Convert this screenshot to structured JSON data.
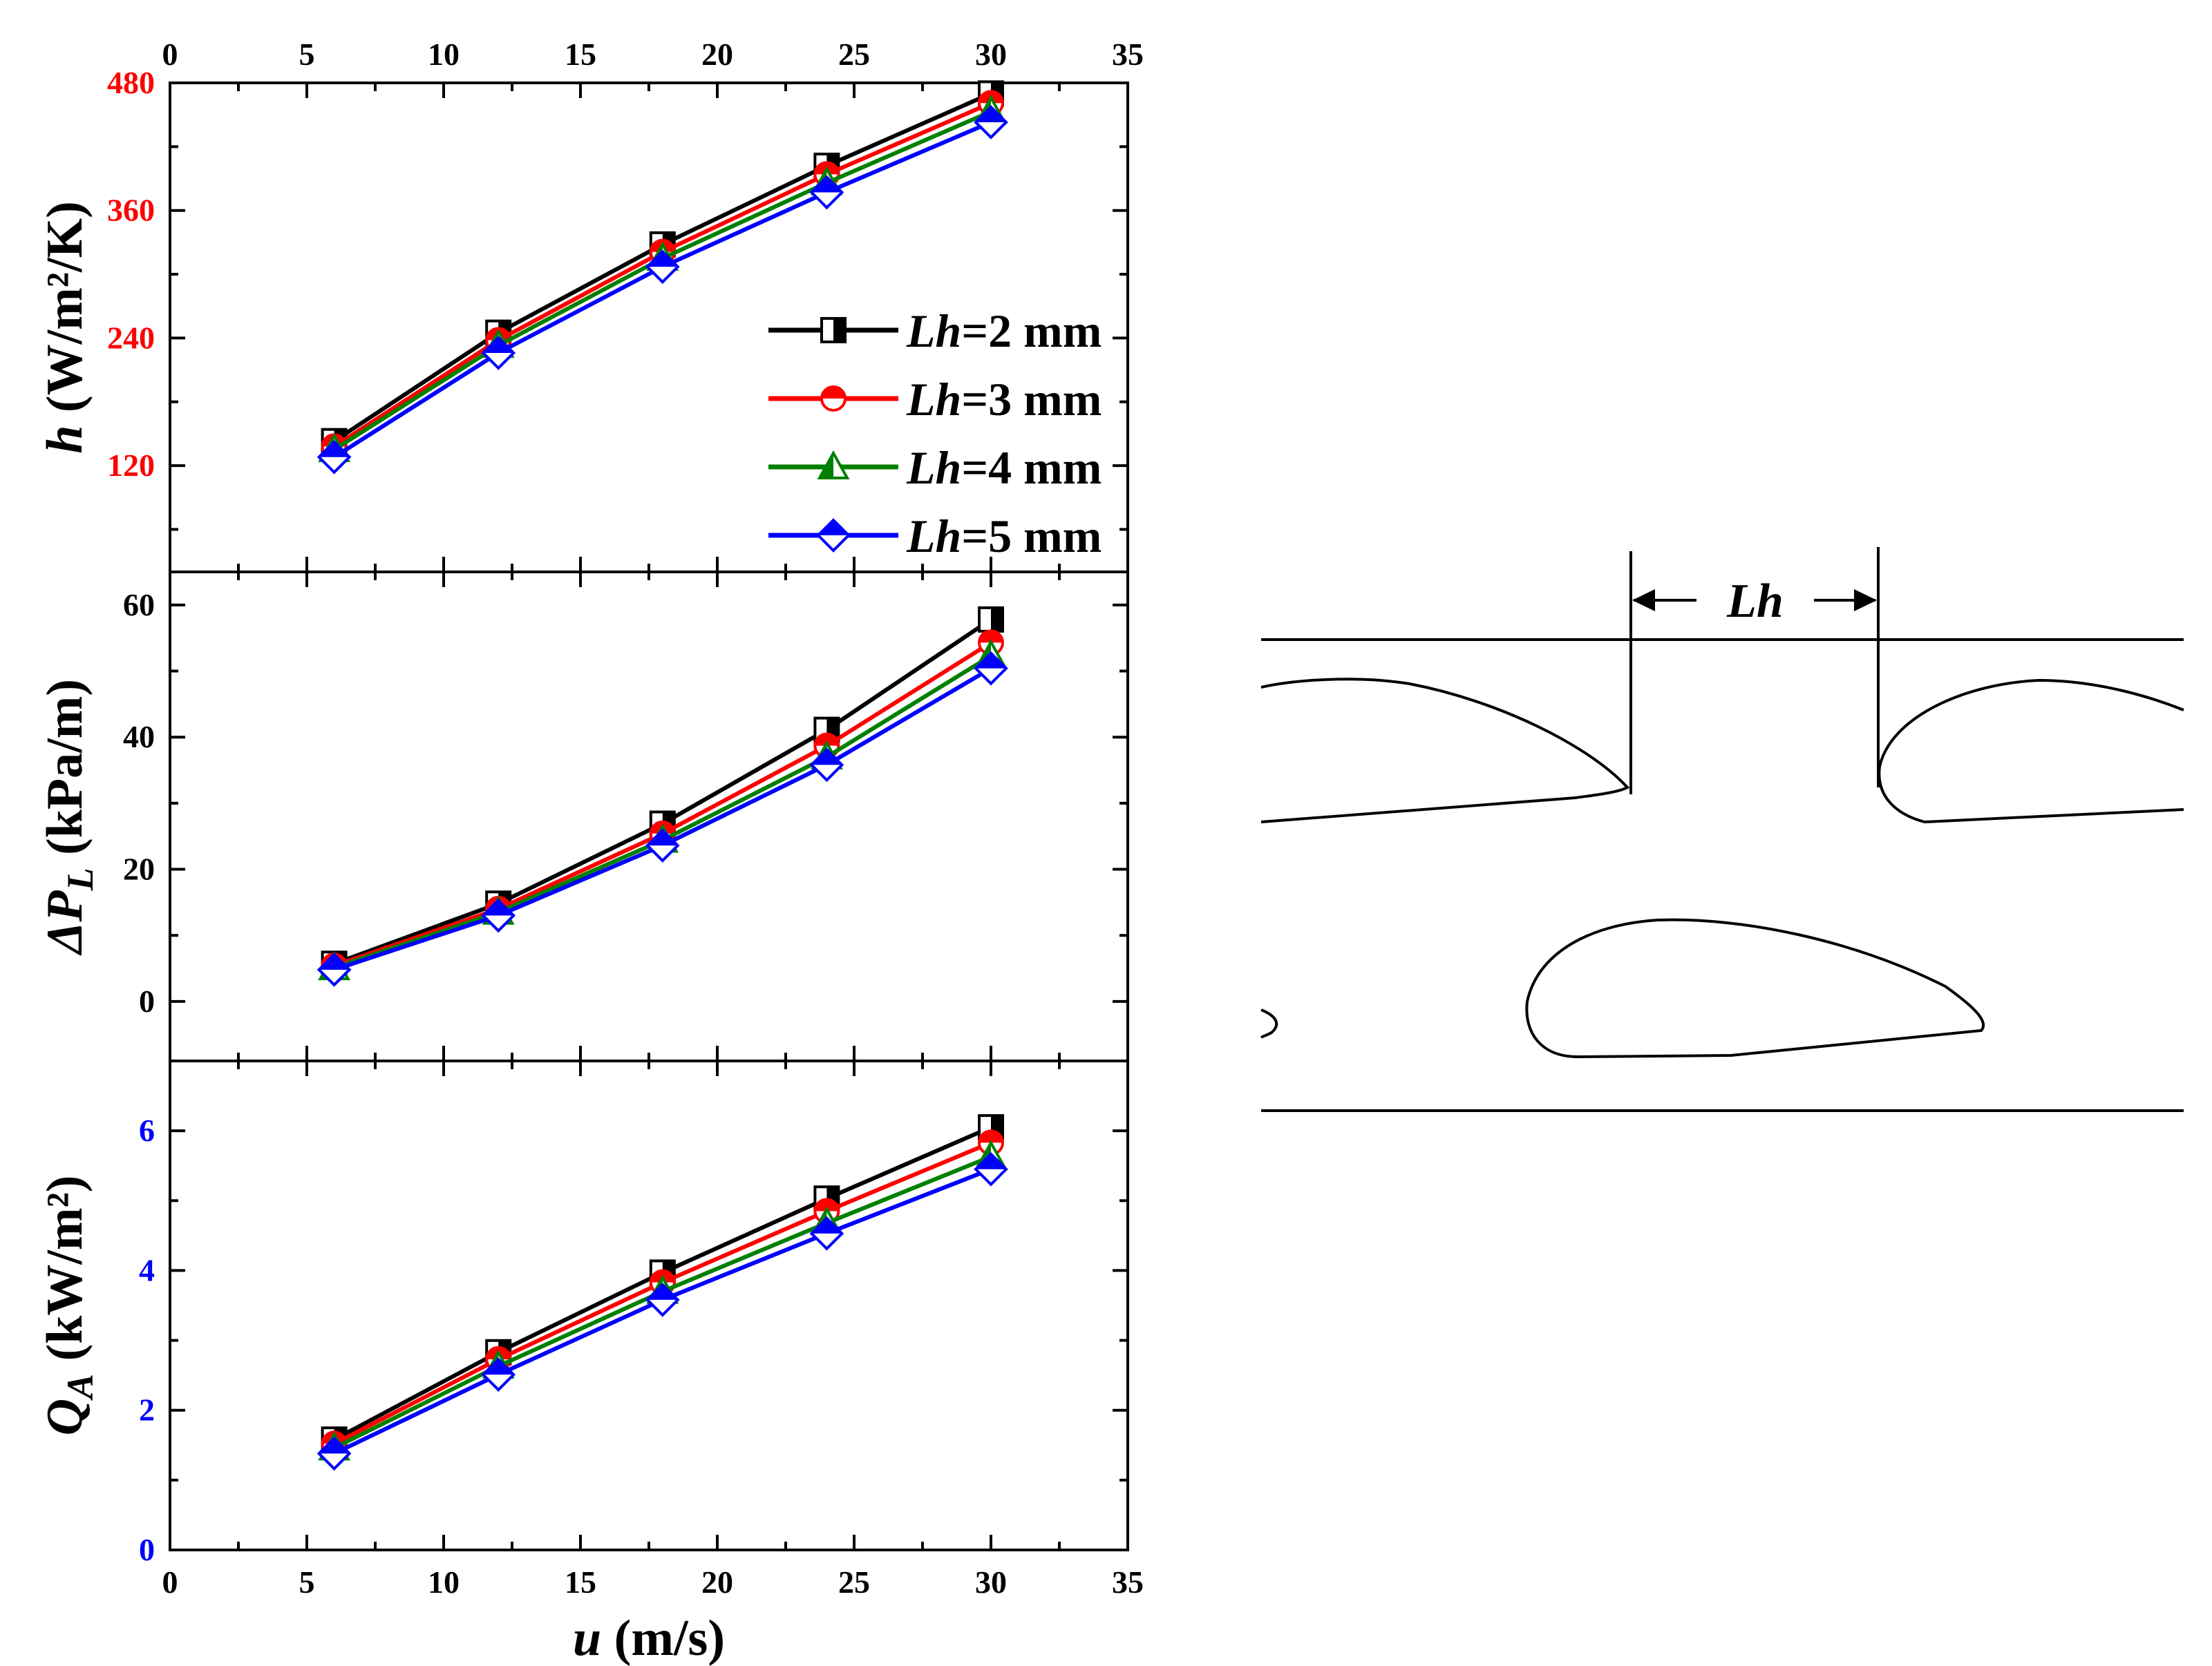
{
  "colors": {
    "Lh2": "#000000",
    "Lh3": "#ff0000",
    "Lh4": "#008000",
    "Lh5": "#0000ff",
    "axis": "#000000",
    "tick_red": "#ff0000",
    "tick_blue": "#0000ff"
  },
  "legend": {
    "placement": "right-middle of top panel",
    "entries": [
      {
        "key": "Lh2",
        "italic": "Lh",
        "rest": "=2 mm",
        "marker": "half-square"
      },
      {
        "key": "Lh3",
        "italic": "Lh",
        "rest": "=3 mm",
        "marker": "half-circle"
      },
      {
        "key": "Lh4",
        "italic": "Lh",
        "rest": "=4 mm",
        "marker": "half-triangle"
      },
      {
        "key": "Lh5",
        "italic": "Lh",
        "rest": "=5 mm",
        "marker": "half-diamond"
      }
    ]
  },
  "chart_data": [
    {
      "type": "line",
      "panel": "top",
      "ylabel": {
        "italic": "h",
        "text": " (W/m²/K)"
      },
      "ylim": [
        20,
        480
      ],
      "yticks": [
        120,
        240,
        360,
        480
      ],
      "ytick_color": "red",
      "xlim": [
        0,
        35
      ],
      "xticks": [
        0,
        5,
        10,
        15,
        20,
        25,
        30,
        35
      ],
      "x_top_axis_labels": true,
      "x": [
        6,
        12,
        18,
        24,
        30
      ],
      "series": [
        {
          "key": "Lh2",
          "values": [
            143,
            245,
            328,
            402,
            470
          ]
        },
        {
          "key": "Lh3",
          "values": [
            138,
            238,
            321,
            394,
            461
          ]
        },
        {
          "key": "Lh4",
          "values": [
            135,
            233,
            315,
            386,
            453
          ]
        },
        {
          "key": "Lh5",
          "values": [
            128,
            226,
            307,
            377,
            443
          ]
        }
      ]
    },
    {
      "type": "line",
      "panel": "middle",
      "ylabel": {
        "italic": "ΔP",
        "sub": "L",
        "text": " (kPa/m)"
      },
      "ylim": [
        -9,
        65
      ],
      "yticks": [
        0,
        20,
        40,
        60
      ],
      "ytick_color": "black",
      "xlim": [
        0,
        35
      ],
      "xticks": [
        0,
        5,
        10,
        15,
        20,
        25,
        30,
        35
      ],
      "x": [
        6,
        12,
        18,
        24,
        30
      ],
      "series": [
        {
          "key": "Lh2",
          "values": [
            5.7,
            14.8,
            26.9,
            41.1,
            57.8
          ]
        },
        {
          "key": "Lh3",
          "values": [
            5.4,
            14.0,
            25.4,
            38.7,
            54.3
          ]
        },
        {
          "key": "Lh4",
          "values": [
            5.1,
            13.5,
            24.4,
            37.0,
            52.3
          ]
        },
        {
          "key": "Lh5",
          "values": [
            4.8,
            13.0,
            23.6,
            35.8,
            50.4
          ]
        }
      ]
    },
    {
      "type": "line",
      "panel": "bottom",
      "ylabel": {
        "italic": "Q",
        "sub": "A",
        "text": " (kW/m²)"
      },
      "ylim": [
        0,
        7
      ],
      "yticks": [
        0,
        2,
        4,
        6
      ],
      "ytick_color": "blue",
      "xlim": [
        0,
        35
      ],
      "xticks": [
        0,
        5,
        10,
        15,
        20,
        25,
        30,
        35
      ],
      "xlabel": {
        "italic": "u",
        "text": " (m/s)"
      },
      "x": [
        6,
        12,
        18,
        24,
        30
      ],
      "series": [
        {
          "key": "Lh2",
          "values": [
            1.58,
            2.83,
            3.97,
            5.03,
            6.05
          ]
        },
        {
          "key": "Lh3",
          "values": [
            1.52,
            2.73,
            3.83,
            4.85,
            5.83
          ]
        },
        {
          "key": "Lh4",
          "values": [
            1.46,
            2.63,
            3.7,
            4.68,
            5.63
          ]
        },
        {
          "key": "Lh5",
          "values": [
            1.38,
            2.51,
            3.58,
            4.53,
            5.45
          ]
        }
      ]
    }
  ],
  "diagram": {
    "dimension_label": "Lh"
  }
}
